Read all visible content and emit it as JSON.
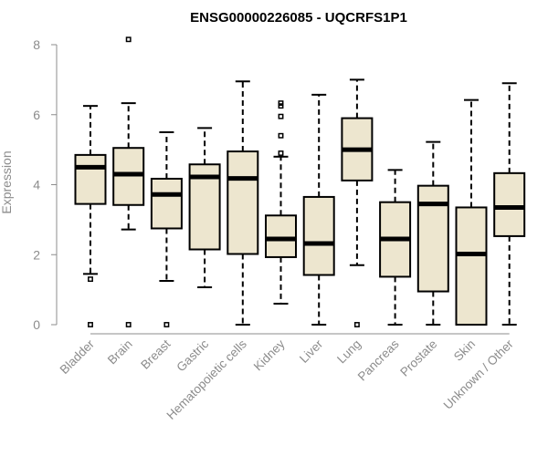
{
  "chart_data": {
    "type": "boxplot",
    "title": "ENSG00000226085 - UQCRFS1P1",
    "xlabel": "",
    "ylabel": "Expression",
    "ylim": [
      0,
      8
    ],
    "yticks": [
      0,
      2,
      4,
      6,
      8
    ],
    "box_fill": "#ede6cf",
    "categories": [
      "Bladder",
      "Brain",
      "Breast",
      "Gastric",
      "Hematopoietic cells",
      "Kidney",
      "Liver",
      "Lung",
      "Pancreas",
      "Prostate",
      "Skin",
      "Unknown / Other"
    ],
    "boxes": [
      {
        "min": 1.45,
        "q1": 3.45,
        "median": 4.5,
        "q3": 4.85,
        "max": 6.25,
        "outliers": [
          1.3,
          0.0
        ]
      },
      {
        "min": 2.72,
        "q1": 3.42,
        "median": 4.3,
        "q3": 5.05,
        "max": 6.33,
        "outliers": [
          8.15,
          0.0
        ]
      },
      {
        "min": 1.25,
        "q1": 2.75,
        "median": 3.72,
        "q3": 4.17,
        "max": 5.5,
        "outliers": [
          0.0
        ]
      },
      {
        "min": 1.07,
        "q1": 2.15,
        "median": 4.22,
        "q3": 4.58,
        "max": 5.62,
        "outliers": []
      },
      {
        "min": 0.0,
        "q1": 2.02,
        "median": 4.18,
        "q3": 4.95,
        "max": 6.95,
        "outliers": []
      },
      {
        "min": 0.6,
        "q1": 1.93,
        "median": 2.45,
        "q3": 3.12,
        "max": 4.8,
        "outliers": [
          6.33,
          6.25,
          5.95,
          5.4,
          4.9
        ]
      },
      {
        "min": 0.0,
        "q1": 1.42,
        "median": 2.32,
        "q3": 3.65,
        "max": 6.57,
        "outliers": []
      },
      {
        "min": 1.7,
        "q1": 4.12,
        "median": 5.0,
        "q3": 5.9,
        "max": 7.0,
        "outliers": [
          0.0
        ]
      },
      {
        "min": 0.0,
        "q1": 1.37,
        "median": 2.45,
        "q3": 3.5,
        "max": 4.42,
        "outliers": []
      },
      {
        "min": 0.0,
        "q1": 0.95,
        "median": 3.45,
        "q3": 3.97,
        "max": 5.22,
        "outliers": []
      },
      {
        "min": 0.0,
        "q1": 0.0,
        "median": 2.02,
        "q3": 3.35,
        "max": 6.42,
        "outliers": []
      },
      {
        "min": 0.0,
        "q1": 2.53,
        "median": 3.35,
        "q3": 4.33,
        "max": 6.9,
        "outliers": []
      }
    ]
  }
}
